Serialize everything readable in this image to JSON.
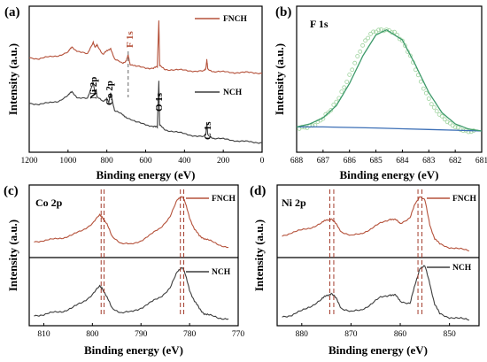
{
  "colors": {
    "fnch": "#b5523b",
    "nch": "#3d3d3d",
    "fit_envelope": "#3e9a6a",
    "background_line": "#3c6fb6",
    "raw_points": "#9ed39e"
  },
  "chart_data": [
    {
      "panel": "(a)",
      "type": "line",
      "xlabel": "Binding energy (eV)",
      "ylabel": "Intensity (a.u.)",
      "xlim": [
        1200,
        0
      ],
      "x_ticks": [
        "1200",
        "1000",
        "800",
        "600",
        "400",
        "200",
        "0"
      ],
      "legend": [
        "FNCH",
        "NCH"
      ],
      "annotations": [
        "Ni 2p",
        "Co 2p",
        "F 1s",
        "O 1s",
        "C 1s"
      ],
      "series": [
        {
          "name": "FNCH",
          "x": [
            1200,
            1150,
            1100,
            1050,
            1000,
            980,
            950,
            900,
            870,
            860,
            850,
            820,
            800,
            780,
            760,
            720,
            700,
            690,
            680,
            650,
            600,
            560,
            540,
            532,
            528,
            500,
            450,
            400,
            350,
            300,
            290,
            285,
            280,
            250,
            200,
            150,
            100,
            50,
            0
          ],
          "y": [
            5.1,
            5.05,
            5.12,
            5.2,
            5.35,
            5.6,
            5.4,
            5.25,
            5.85,
            5.55,
            5.7,
            5.25,
            5.4,
            5.55,
            5.0,
            4.85,
            4.95,
            5.2,
            4.8,
            4.68,
            4.62,
            4.6,
            4.65,
            6.9,
            4.7,
            4.55,
            4.52,
            4.5,
            4.47,
            4.45,
            4.6,
            5.0,
            4.55,
            4.45,
            4.42,
            4.4,
            4.4,
            4.38,
            4.38
          ]
        },
        {
          "name": "NCH",
          "x": [
            1200,
            1150,
            1100,
            1050,
            1000,
            980,
            950,
            900,
            870,
            860,
            855,
            850,
            820,
            800,
            790,
            780,
            760,
            720,
            700,
            650,
            600,
            560,
            540,
            532,
            528,
            500,
            450,
            400,
            350,
            300,
            290,
            285,
            280,
            250,
            200,
            150,
            100,
            50,
            0
          ],
          "y": [
            2.95,
            2.9,
            2.95,
            3.05,
            3.3,
            3.5,
            3.2,
            3.15,
            3.95,
            3.35,
            3.6,
            3.25,
            3.0,
            3.2,
            2.95,
            3.45,
            2.6,
            2.4,
            2.3,
            2.05,
            1.95,
            1.85,
            1.8,
            4.05,
            1.9,
            1.7,
            1.6,
            1.5,
            1.42,
            1.35,
            1.5,
            2.0,
            1.45,
            1.3,
            1.25,
            1.2,
            1.15,
            1.1,
            1.1
          ]
        }
      ]
    },
    {
      "panel": "(b)",
      "type": "scatter",
      "title": "F 1s",
      "xlabel": "Binding energy (eV)",
      "ylabel": "Intensity (a.u.)",
      "xlim": [
        688,
        681
      ],
      "x_ticks": [
        "688",
        "687",
        "686",
        "685",
        "684",
        "683",
        "682",
        "681"
      ],
      "peak_center": 684.6,
      "series": [
        {
          "name": "",
          "role": "raw data",
          "x": [
            687.9,
            687.6,
            687.3,
            687.0,
            686.7,
            686.4,
            686.1,
            685.8,
            685.5,
            685.2,
            684.9,
            684.6,
            684.3,
            684.0,
            683.7,
            683.4,
            683.1,
            682.8,
            682.5,
            682.2,
            681.9,
            681.6,
            681.3
          ],
          "y": [
            0.03,
            0.05,
            0.07,
            0.12,
            0.2,
            0.33,
            0.5,
            0.68,
            0.84,
            0.95,
            1.0,
            1.01,
            0.98,
            0.88,
            0.73,
            0.55,
            0.38,
            0.23,
            0.13,
            0.06,
            0.03,
            0.01,
            0.0
          ]
        },
        {
          "name": "",
          "role": "fitted envelope",
          "x": [
            688,
            687.5,
            687,
            686.5,
            686,
            685.5,
            685,
            684.6,
            684,
            683.5,
            683,
            682.5,
            682,
            681.5,
            681
          ],
          "y": [
            0.04,
            0.07,
            0.13,
            0.25,
            0.47,
            0.74,
            0.95,
            1.0,
            0.9,
            0.65,
            0.38,
            0.18,
            0.07,
            0.02,
            0.0
          ]
        },
        {
          "name": "",
          "role": "background",
          "x": [
            688,
            687,
            686,
            685,
            684,
            683,
            682,
            681
          ],
          "y": [
            0.04,
            0.04,
            0.035,
            0.03,
            0.022,
            0.015,
            0.008,
            0.0
          ]
        }
      ]
    },
    {
      "panel": "(c)",
      "type": "line",
      "title": "Co 2p",
      "xlabel": "Binding energy (eV)",
      "ylabel": "Intensity (a.u.)",
      "xlim": [
        813,
        770
      ],
      "x_ticks": [
        "810",
        "800",
        "790",
        "780",
        "770"
      ],
      "dashed_lines": [
        798.2,
        797.6,
        781.9,
        781.2
      ],
      "legend": [
        "FNCH",
        "NCH"
      ],
      "series": [
        {
          "name": "FNCH",
          "x": [
            812,
            810,
            808,
            806,
            804,
            802,
            800,
            798.5,
            798,
            797,
            796,
            794,
            792,
            790,
            788,
            786,
            784,
            782.5,
            781.5,
            781,
            780,
            779,
            778,
            777,
            776,
            774,
            772
          ],
          "y": [
            0.2,
            0.22,
            0.24,
            0.27,
            0.32,
            0.4,
            0.52,
            0.66,
            0.64,
            0.5,
            0.3,
            0.17,
            0.15,
            0.22,
            0.32,
            0.44,
            0.64,
            0.93,
            1.0,
            0.9,
            0.62,
            0.42,
            0.3,
            0.26,
            0.22,
            0.15,
            0.1
          ]
        },
        {
          "name": "NCH",
          "x": [
            812,
            810,
            808,
            806,
            804,
            802,
            800,
            798.5,
            798,
            797,
            796,
            794,
            792,
            790,
            788,
            786,
            784,
            782.5,
            781.5,
            781,
            780,
            779,
            778,
            777,
            776,
            774,
            772
          ],
          "y": [
            0.12,
            0.14,
            0.17,
            0.2,
            0.26,
            0.36,
            0.5,
            0.64,
            0.62,
            0.44,
            0.26,
            0.17,
            0.18,
            0.26,
            0.35,
            0.45,
            0.62,
            0.9,
            1.0,
            0.88,
            0.58,
            0.38,
            0.24,
            0.16,
            0.12,
            0.08,
            0.06
          ]
        }
      ]
    },
    {
      "panel": "(d)",
      "type": "line",
      "title": "Ni 2p",
      "xlabel": "Binding energy (eV)",
      "ylabel": "Intensity (a.u.)",
      "xlim": [
        885,
        844
      ],
      "x_ticks": [
        "880",
        "870",
        "860",
        "850"
      ],
      "dashed_lines": [
        874.3,
        873.5,
        856.4,
        855.6
      ],
      "legend": [
        "FNCH",
        "NCH"
      ],
      "series": [
        {
          "name": "FNCH",
          "x": [
            884,
            882,
            880,
            878,
            876,
            875,
            874,
            873,
            872,
            870,
            868,
            866,
            864,
            862,
            861,
            860,
            858,
            857,
            856,
            855,
            854,
            853,
            852,
            850,
            848,
            846
          ],
          "y": [
            0.3,
            0.36,
            0.4,
            0.45,
            0.52,
            0.58,
            0.6,
            0.5,
            0.38,
            0.3,
            0.34,
            0.42,
            0.52,
            0.6,
            0.58,
            0.52,
            0.62,
            0.85,
            1.0,
            0.92,
            0.5,
            0.25,
            0.16,
            0.1,
            0.07,
            0.05
          ]
        },
        {
          "name": "NCH",
          "x": [
            884,
            882,
            880,
            878,
            876,
            875,
            874,
            873,
            872,
            870,
            868,
            866,
            864,
            862,
            861,
            860,
            858,
            857,
            856,
            855,
            854,
            853,
            852,
            850,
            848,
            846
          ],
          "y": [
            0.1,
            0.13,
            0.2,
            0.3,
            0.4,
            0.48,
            0.52,
            0.42,
            0.26,
            0.18,
            0.22,
            0.32,
            0.44,
            0.5,
            0.48,
            0.38,
            0.34,
            0.66,
            0.98,
            1.0,
            0.7,
            0.32,
            0.15,
            0.09,
            0.06,
            0.05
          ]
        }
      ]
    }
  ]
}
